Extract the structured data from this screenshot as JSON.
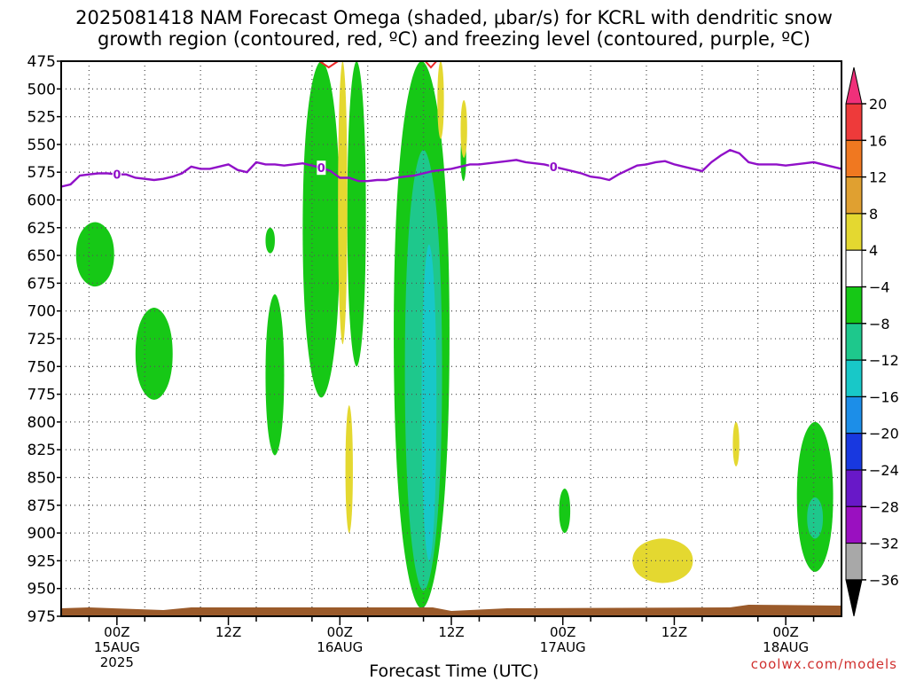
{
  "title_line1": "2025081418 NAM Forecast Omega (shaded, μbar/s) for KCRL with dendritic snow",
  "title_line2": "growth region (contoured, red, ºC) and freezing level (contoured, purple, ºC)",
  "watermark": "coolwx.com/models",
  "chart_data": {
    "type": "heatmap",
    "title": "2025081418 NAM Forecast Omega (shaded, μbar/s) for KCRL with dendritic snow growth region (contoured, red, ºC) and freezing level (contoured, purple, ºC)",
    "xlabel": "Forecast Time (UTC)",
    "ylabel": "",
    "x_range_hours": [
      0,
      84
    ],
    "y_range_hPa": [
      475,
      975
    ],
    "y_scale": "pressure",
    "grid": true,
    "x_ticks": [
      {
        "h": 6,
        "label": "00Z",
        "sub": "15AUG",
        "sub2": "2025"
      },
      {
        "h": 18,
        "label": "12Z",
        "sub": "",
        "sub2": ""
      },
      {
        "h": 30,
        "label": "00Z",
        "sub": "16AUG",
        "sub2": ""
      },
      {
        "h": 42,
        "label": "12Z",
        "sub": "",
        "sub2": ""
      },
      {
        "h": 54,
        "label": "00Z",
        "sub": "17AUG",
        "sub2": ""
      },
      {
        "h": 66,
        "label": "12Z",
        "sub": "",
        "sub2": ""
      },
      {
        "h": 78,
        "label": "00Z",
        "sub": "18AUG",
        "sub2": ""
      }
    ],
    "y_ticks": [
      475,
      500,
      525,
      550,
      575,
      600,
      625,
      650,
      675,
      700,
      725,
      750,
      775,
      800,
      825,
      850,
      875,
      900,
      925,
      950,
      975
    ],
    "colorbar": {
      "levels": [
        "20",
        "16",
        "12",
        "8",
        "4",
        "−4",
        "−8",
        "−12",
        "−16",
        "−20",
        "−24",
        "−28",
        "−32",
        "−36"
      ],
      "colors": [
        "#f0307a",
        "#ee3a3a",
        "#f07820",
        "#e0a030",
        "#e4d830",
        "#ffffff",
        "#16c816",
        "#1ec88c",
        "#18c8c8",
        "#1c8ee8",
        "#1838e0",
        "#6818c8",
        "#9a10c0",
        "#a8a8a8",
        "#000000"
      ]
    },
    "freezing_level": {
      "label": "0",
      "color": "#9010c8",
      "hours": [
        0,
        1,
        2,
        3,
        4,
        5,
        6,
        7,
        8,
        9,
        10,
        11,
        12,
        13,
        14,
        15,
        16,
        17,
        18,
        19,
        20,
        21,
        22,
        23,
        24,
        25,
        26,
        27,
        28,
        29,
        30,
        31,
        32,
        33,
        34,
        35,
        36,
        37,
        38,
        39,
        40,
        41,
        42,
        43,
        44,
        45,
        46,
        47,
        48,
        49,
        50,
        51,
        52,
        53,
        54,
        55,
        56,
        57,
        58,
        59,
        60,
        61,
        62,
        63,
        64,
        65,
        66,
        67,
        68,
        69,
        70,
        71,
        72,
        73,
        74,
        75,
        76,
        77,
        78,
        79,
        80,
        81,
        82,
        83,
        84
      ],
      "pressure_hPa": [
        588,
        586,
        578,
        577,
        576,
        576,
        577,
        577,
        580,
        581,
        582,
        581,
        579,
        576,
        570,
        572,
        572,
        570,
        568,
        573,
        575,
        566,
        568,
        568,
        569,
        568,
        567,
        569,
        571,
        574,
        580,
        580,
        583,
        583,
        582,
        582,
        580,
        579,
        578,
        576,
        574,
        573,
        572,
        570,
        568,
        568,
        567,
        566,
        565,
        564,
        566,
        567,
        568,
        570,
        572,
        574,
        576,
        579,
        580,
        582,
        577,
        573,
        569,
        568,
        566,
        565,
        568,
        570,
        572,
        574,
        566,
        560,
        555,
        558,
        566,
        568,
        568,
        568,
        569,
        568,
        567,
        566,
        568,
        570,
        572
      ]
    },
    "freezing_level_labels_hours": [
      6,
      28,
      53
    ],
    "omega_regions": [
      {
        "color": "#16c816",
        "value_range": "-8 to -4",
        "hours": [
          1.6,
          5.7
        ],
        "p_hPa": [
          620,
          678
        ]
      },
      {
        "color": "#16c816",
        "value_range": "-8 to -4",
        "hours": [
          8.0,
          12.0
        ],
        "p_hPa": [
          697,
          780
        ]
      },
      {
        "color": "#16c816",
        "value_range": "-8 to -4",
        "hours": [
          22.0,
          23.0
        ],
        "p_hPa": [
          625,
          648
        ]
      },
      {
        "color": "#16c816",
        "value_range": "-8 to -4",
        "hours": [
          22.0,
          24.0
        ],
        "p_hPa": [
          685,
          830
        ]
      },
      {
        "color": "#16c816",
        "value_range": "-8 to -4",
        "hours": [
          26.0,
          30.0
        ],
        "p_hPa": [
          475,
          778
        ]
      },
      {
        "color": "#16c816",
        "value_range": "-8 to -4",
        "hours": [
          30.8,
          32.8
        ],
        "p_hPa": [
          475,
          750
        ]
      },
      {
        "color": "#16c816",
        "value_range": "-8 to -4",
        "hours": [
          35.8,
          41.8
        ],
        "p_hPa": [
          475,
          968
        ]
      },
      {
        "color": "#1ec88c",
        "value_range": "-12 to -8",
        "hours": [
          37.0,
          41.0
        ],
        "p_hPa": [
          555,
          952
        ]
      },
      {
        "color": "#18c8c8",
        "value_range": "-16 to -12",
        "hours": [
          38.8,
          40.4
        ],
        "p_hPa": [
          640,
          925
        ]
      },
      {
        "color": "#16c816",
        "value_range": "-8 to -4",
        "hours": [
          43.0,
          43.6
        ],
        "p_hPa": [
          540,
          583
        ]
      },
      {
        "color": "#16c816",
        "value_range": "-8 to -4",
        "hours": [
          53.6,
          54.8
        ],
        "p_hPa": [
          860,
          900
        ]
      },
      {
        "color": "#16c816",
        "value_range": "-8 to -4",
        "hours": [
          79.2,
          83.1
        ],
        "p_hPa": [
          800,
          935
        ]
      },
      {
        "color": "#1ec88c",
        "value_range": "-12 to -8",
        "hours": [
          80.3,
          82.0
        ],
        "p_hPa": [
          868,
          905
        ]
      }
    ],
    "positive_omega_regions": [
      {
        "color": "#e4d830",
        "value_range": "4 to 8",
        "hours": [
          29.8,
          30.8
        ],
        "p_hPa": [
          475,
          730
        ]
      },
      {
        "color": "#e4d830",
        "value_range": "4 to 8",
        "hours": [
          30.6,
          31.4
        ],
        "p_hPa": [
          785,
          900
        ]
      },
      {
        "color": "#e4d830",
        "value_range": "4 to 8",
        "hours": [
          40.5,
          41.2
        ],
        "p_hPa": [
          475,
          545
        ]
      },
      {
        "color": "#e4d830",
        "value_range": "4 to 8",
        "hours": [
          43.0,
          43.7
        ],
        "p_hPa": [
          510,
          562
        ]
      },
      {
        "color": "#e4d830",
        "value_range": "4 to 8",
        "hours": [
          61.5,
          68.0
        ],
        "p_hPa": [
          905,
          945
        ]
      },
      {
        "color": "#e4d830",
        "value_range": "4 to 8",
        "hours": [
          72.3,
          73.0
        ],
        "p_hPa": [
          800,
          840
        ]
      }
    ],
    "dgz_contour_color": "#ee2a2a",
    "terrain_color": "#9a5a2a"
  }
}
